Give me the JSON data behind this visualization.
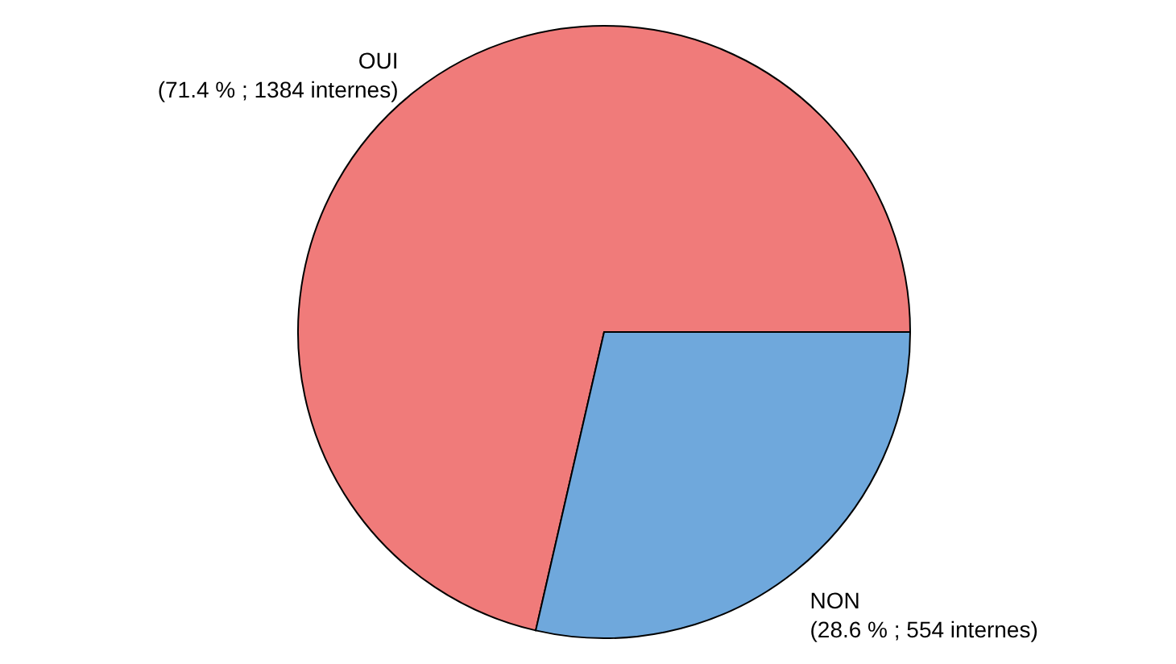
{
  "chart_data": {
    "type": "pie",
    "categories": [
      "OUI",
      "NON"
    ],
    "values": [
      1384,
      554
    ],
    "value_labels": [
      "(71.4 % ; 1384 internes)",
      "(28.6 % ; 554 internes)"
    ],
    "colors": [
      "#f07b7a",
      "#6fa8dc"
    ]
  }
}
